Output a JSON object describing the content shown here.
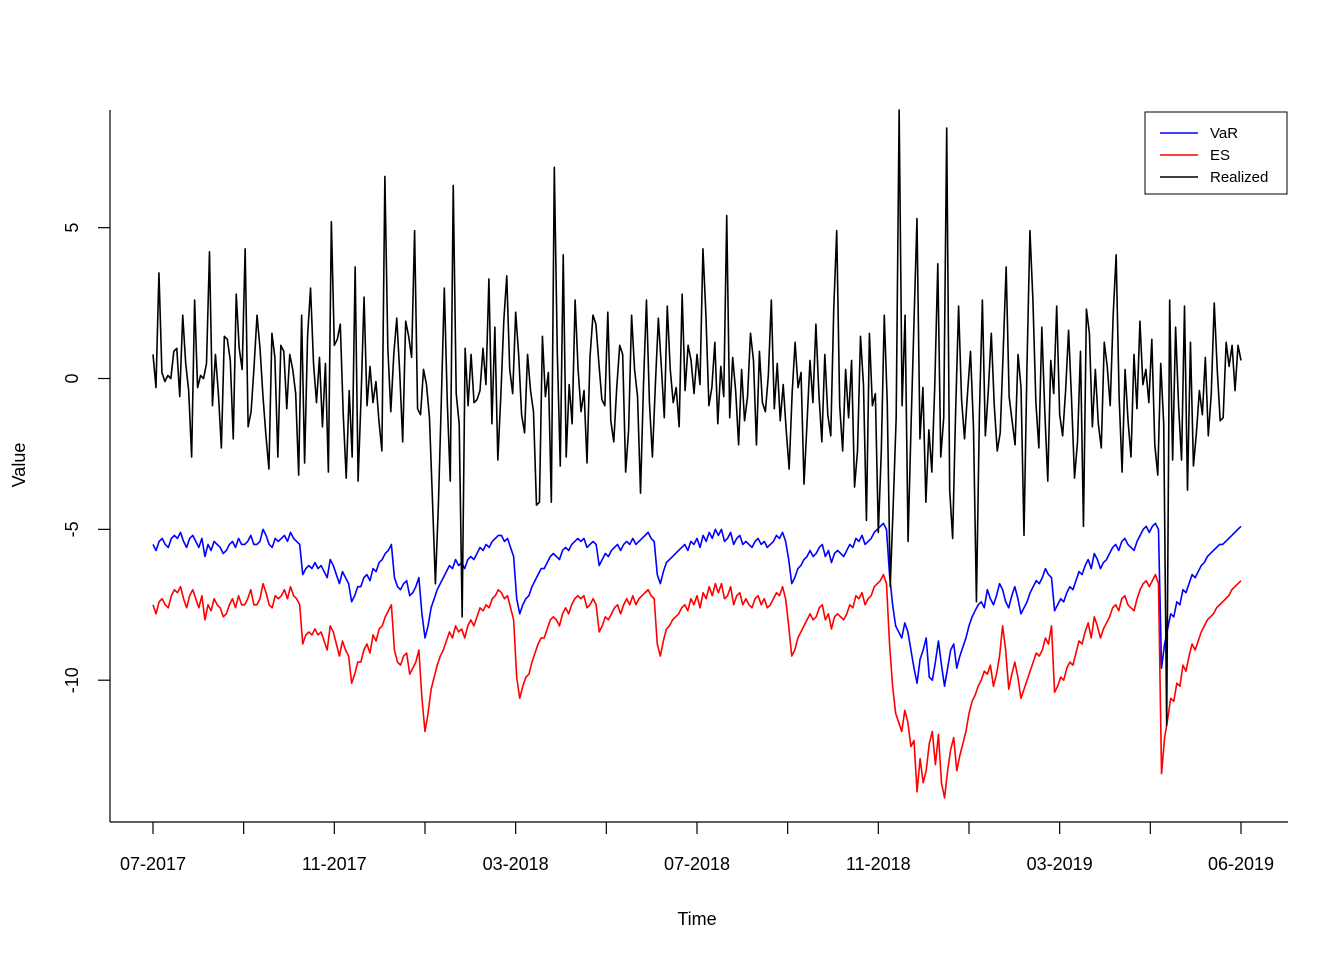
{
  "chart_data": {
    "type": "line",
    "xlabel": "Time",
    "ylabel": "Value",
    "x_ticks": [
      "07-2017",
      "",
      "11-2017",
      "",
      "03-2018",
      "",
      "07-2018",
      "",
      "11-2018",
      "",
      "03-2019",
      "",
      "06-2019"
    ],
    "y_ticks": [
      "-10",
      "-5",
      "0",
      "5"
    ],
    "y_tick_values": [
      -10,
      -5,
      0,
      5
    ],
    "ylim": [
      -14.7,
      8.9
    ],
    "legend_position": "top-right",
    "series": [
      {
        "name": "VaR",
        "color": "#0000ff",
        "values": [
          -5.5,
          -5.7,
          -5.4,
          -5.3,
          -5.5,
          -5.6,
          -5.3,
          -5.2,
          -5.3,
          -5.1,
          -5.4,
          -5.6,
          -5.3,
          -5.2,
          -5.4,
          -5.6,
          -5.3,
          -5.9,
          -5.5,
          -5.7,
          -5.4,
          -5.5,
          -5.6,
          -5.8,
          -5.7,
          -5.5,
          -5.4,
          -5.6,
          -5.3,
          -5.5,
          -5.5,
          -5.4,
          -5.2,
          -5.5,
          -5.5,
          -5.4,
          -5.0,
          -5.2,
          -5.5,
          -5.6,
          -5.3,
          -5.4,
          -5.3,
          -5.2,
          -5.4,
          -5.1,
          -5.3,
          -5.4,
          -5.5,
          -6.5,
          -6.3,
          -6.2,
          -6.3,
          -6.1,
          -6.3,
          -6.2,
          -6.4,
          -6.6,
          -6.0,
          -6.2,
          -6.5,
          -6.8,
          -6.4,
          -6.6,
          -6.8,
          -7.4,
          -7.2,
          -6.9,
          -6.9,
          -6.6,
          -6.5,
          -6.7,
          -6.3,
          -6.4,
          -6.1,
          -6.0,
          -5.8,
          -5.7,
          -5.5,
          -6.6,
          -6.9,
          -7.0,
          -6.8,
          -6.7,
          -7.2,
          -7.1,
          -6.9,
          -6.6,
          -7.8,
          -8.6,
          -8.2,
          -7.6,
          -7.3,
          -7.0,
          -6.8,
          -6.6,
          -6.4,
          -6.2,
          -6.3,
          -6.0,
          -6.2,
          -6.1,
          -6.3,
          -6.0,
          -5.9,
          -6.0,
          -5.8,
          -5.6,
          -5.7,
          -5.5,
          -5.6,
          -5.4,
          -5.3,
          -5.2,
          -5.2,
          -5.4,
          -5.3,
          -5.6,
          -5.9,
          -7.3,
          -7.8,
          -7.5,
          -7.3,
          -7.2,
          -6.9,
          -6.7,
          -6.5,
          -6.3,
          -6.3,
          -6.1,
          -5.9,
          -5.8,
          -5.9,
          -6.0,
          -5.7,
          -5.6,
          -5.7,
          -5.5,
          -5.4,
          -5.3,
          -5.4,
          -5.3,
          -5.6,
          -5.5,
          -5.4,
          -5.5,
          -6.2,
          -6.0,
          -5.8,
          -5.9,
          -5.7,
          -5.6,
          -5.5,
          -5.7,
          -5.5,
          -5.4,
          -5.5,
          -5.3,
          -5.5,
          -5.4,
          -5.3,
          -5.2,
          -5.1,
          -5.3,
          -5.4,
          -6.5,
          -6.8,
          -6.4,
          -6.1,
          -6.0,
          -5.9,
          -5.8,
          -5.7,
          -5.6,
          -5.5,
          -5.7,
          -5.4,
          -5.5,
          -5.3,
          -5.6,
          -5.2,
          -5.4,
          -5.1,
          -5.3,
          -5.0,
          -5.2,
          -5.0,
          -5.4,
          -5.3,
          -5.1,
          -5.5,
          -5.3,
          -5.2,
          -5.5,
          -5.4,
          -5.5,
          -5.6,
          -5.4,
          -5.3,
          -5.5,
          -5.4,
          -5.6,
          -5.5,
          -5.4,
          -5.2,
          -5.3,
          -5.1,
          -5.4,
          -6.0,
          -6.8,
          -6.6,
          -6.3,
          -6.2,
          -6.0,
          -5.9,
          -5.7,
          -5.9,
          -5.8,
          -5.6,
          -5.5,
          -5.9,
          -5.7,
          -6.1,
          -5.8,
          -5.7,
          -5.8,
          -5.9,
          -5.7,
          -5.5,
          -5.6,
          -5.3,
          -5.4,
          -5.2,
          -5.5,
          -5.4,
          -5.3,
          -5.1,
          -5.0,
          -4.9,
          -4.8,
          -5.0,
          -6.5,
          -7.5,
          -8.2,
          -8.4,
          -8.6,
          -8.1,
          -8.4,
          -9.0,
          -9.6,
          -10.1,
          -9.3,
          -9.0,
          -8.6,
          -9.9,
          -10.0,
          -9.4,
          -8.7,
          -9.5,
          -10.2,
          -9.6,
          -9.0,
          -8.8,
          -9.6,
          -9.2,
          -8.9,
          -8.6,
          -8.2,
          -7.9,
          -7.7,
          -7.5,
          -7.4,
          -7.6,
          -7.0,
          -7.3,
          -7.5,
          -7.2,
          -6.8,
          -7.0,
          -7.4,
          -7.6,
          -7.2,
          -6.9,
          -7.3,
          -7.8,
          -7.6,
          -7.4,
          -7.1,
          -6.9,
          -6.7,
          -6.8,
          -6.6,
          -6.3,
          -6.5,
          -6.6,
          -7.7,
          -7.5,
          -7.3,
          -7.4,
          -7.1,
          -6.9,
          -7.0,
          -6.7,
          -6.4,
          -6.5,
          -6.2,
          -6.0,
          -6.3,
          -5.8,
          -6.0,
          -6.3,
          -6.1,
          -6.0,
          -5.8,
          -5.6,
          -5.5,
          -5.7,
          -5.4,
          -5.3,
          -5.5,
          -5.6,
          -5.7,
          -5.4,
          -5.2,
          -5.0,
          -4.9,
          -5.1,
          -4.9,
          -4.8,
          -5.0,
          -9.6,
          -8.8,
          -8.3,
          -7.8,
          -7.9,
          -7.4,
          -7.5,
          -7.0,
          -7.1,
          -6.8,
          -6.5,
          -6.6,
          -6.4,
          -6.2,
          -6.1,
          -5.9,
          -5.8,
          -5.7,
          -5.6,
          -5.5,
          -5.5,
          -5.4,
          -5.3,
          -5.2,
          -5.1,
          -5.0,
          -4.9
        ]
      },
      {
        "name": "ES",
        "color": "#ff0000",
        "values": [
          -7.5,
          -7.8,
          -7.4,
          -7.3,
          -7.5,
          -7.6,
          -7.2,
          -7.0,
          -7.1,
          -6.9,
          -7.3,
          -7.6,
          -7.2,
          -7.0,
          -7.3,
          -7.6,
          -7.2,
          -8.0,
          -7.5,
          -7.7,
          -7.3,
          -7.5,
          -7.6,
          -7.9,
          -7.8,
          -7.5,
          -7.3,
          -7.6,
          -7.2,
          -7.5,
          -7.5,
          -7.3,
          -7.0,
          -7.5,
          -7.5,
          -7.3,
          -6.8,
          -7.1,
          -7.5,
          -7.6,
          -7.2,
          -7.3,
          -7.2,
          -7.0,
          -7.3,
          -6.9,
          -7.2,
          -7.3,
          -7.5,
          -8.8,
          -8.5,
          -8.4,
          -8.5,
          -8.3,
          -8.5,
          -8.4,
          -8.7,
          -9.0,
          -8.2,
          -8.4,
          -8.8,
          -9.2,
          -8.7,
          -9.0,
          -9.2,
          -10.1,
          -9.8,
          -9.4,
          -9.4,
          -9.0,
          -8.8,
          -9.1,
          -8.5,
          -8.7,
          -8.3,
          -8.2,
          -7.9,
          -7.7,
          -7.5,
          -9.0,
          -9.4,
          -9.5,
          -9.2,
          -9.1,
          -9.8,
          -9.6,
          -9.4,
          -9.0,
          -10.6,
          -11.7,
          -11.1,
          -10.3,
          -9.9,
          -9.5,
          -9.2,
          -9.0,
          -8.7,
          -8.4,
          -8.6,
          -8.2,
          -8.4,
          -8.3,
          -8.6,
          -8.2,
          -8.0,
          -8.2,
          -7.9,
          -7.6,
          -7.7,
          -7.5,
          -7.6,
          -7.3,
          -7.2,
          -7.0,
          -7.1,
          -7.3,
          -7.2,
          -7.6,
          -8.0,
          -9.9,
          -10.6,
          -10.2,
          -9.9,
          -9.8,
          -9.4,
          -9.1,
          -8.8,
          -8.6,
          -8.6,
          -8.3,
          -8.0,
          -7.9,
          -8.0,
          -8.2,
          -7.8,
          -7.6,
          -7.8,
          -7.5,
          -7.3,
          -7.2,
          -7.3,
          -7.2,
          -7.6,
          -7.5,
          -7.3,
          -7.5,
          -8.4,
          -8.2,
          -7.9,
          -8.0,
          -7.8,
          -7.6,
          -7.5,
          -7.8,
          -7.5,
          -7.3,
          -7.5,
          -7.2,
          -7.5,
          -7.3,
          -7.2,
          -7.1,
          -7.0,
          -7.2,
          -7.3,
          -8.8,
          -9.2,
          -8.7,
          -8.3,
          -8.2,
          -8.0,
          -7.9,
          -7.8,
          -7.6,
          -7.5,
          -7.7,
          -7.3,
          -7.5,
          -7.2,
          -7.6,
          -7.1,
          -7.3,
          -6.9,
          -7.2,
          -6.8,
          -7.1,
          -6.8,
          -7.3,
          -7.2,
          -6.9,
          -7.5,
          -7.2,
          -7.1,
          -7.5,
          -7.3,
          -7.5,
          -7.6,
          -7.3,
          -7.2,
          -7.5,
          -7.3,
          -7.6,
          -7.5,
          -7.3,
          -7.1,
          -7.2,
          -6.9,
          -7.3,
          -8.2,
          -9.2,
          -9.0,
          -8.6,
          -8.4,
          -8.2,
          -8.0,
          -7.8,
          -8.0,
          -7.9,
          -7.6,
          -7.5,
          -8.0,
          -7.8,
          -8.3,
          -7.9,
          -7.8,
          -7.9,
          -8.0,
          -7.8,
          -7.5,
          -7.6,
          -7.2,
          -7.3,
          -7.1,
          -7.5,
          -7.3,
          -7.2,
          -6.9,
          -6.8,
          -6.7,
          -6.5,
          -6.8,
          -8.8,
          -10.2,
          -11.1,
          -11.4,
          -11.7,
          -11.0,
          -11.4,
          -12.2,
          -12.0,
          -13.7,
          -12.6,
          -13.4,
          -13.0,
          -12.1,
          -11.7,
          -12.8,
          -11.8,
          -13.4,
          -13.9,
          -13.0,
          -12.3,
          -11.9,
          -13.0,
          -12.5,
          -12.1,
          -11.7,
          -11.1,
          -10.7,
          -10.5,
          -10.2,
          -10.0,
          -9.7,
          -9.8,
          -9.5,
          -10.2,
          -9.8,
          -9.2,
          -8.2,
          -9.0,
          -10.3,
          -9.8,
          -9.4,
          -9.9,
          -10.6,
          -10.3,
          -10.0,
          -9.7,
          -9.4,
          -9.1,
          -9.2,
          -9.0,
          -8.6,
          -8.8,
          -8.2,
          -10.4,
          -10.2,
          -9.9,
          -10.0,
          -9.6,
          -9.4,
          -9.5,
          -9.1,
          -8.7,
          -8.8,
          -8.4,
          -8.1,
          -8.6,
          -7.9,
          -8.2,
          -8.6,
          -8.3,
          -8.1,
          -7.9,
          -7.6,
          -7.5,
          -7.7,
          -7.3,
          -7.2,
          -7.5,
          -7.6,
          -7.7,
          -7.3,
          -7.0,
          -6.8,
          -6.7,
          -6.9,
          -6.7,
          -6.5,
          -6.8,
          -13.1,
          -11.9,
          -11.3,
          -10.6,
          -10.7,
          -10.1,
          -10.2,
          -9.5,
          -9.7,
          -9.2,
          -8.8,
          -9.0,
          -8.7,
          -8.4,
          -8.2,
          -8.0,
          -7.9,
          -7.8,
          -7.6,
          -7.5,
          -7.4,
          -7.3,
          -7.2,
          -7.0,
          -6.9,
          -6.8,
          -6.7
        ]
      },
      {
        "name": "Realized",
        "color": "#000000",
        "values": [
          0.8,
          -0.3,
          3.5,
          0.2,
          -0.1,
          0.1,
          0.0,
          0.9,
          1.0,
          -0.6,
          2.1,
          0.5,
          -0.4,
          -2.6,
          2.6,
          -0.3,
          0.1,
          0.0,
          0.5,
          4.2,
          -0.9,
          0.8,
          -0.5,
          -2.3,
          1.4,
          1.3,
          0.6,
          -2.0,
          2.8,
          1.0,
          0.3,
          4.3,
          -1.6,
          -1.1,
          0.4,
          2.1,
          1.0,
          -0.6,
          -1.9,
          -3.0,
          1.5,
          0.7,
          -2.6,
          1.1,
          0.9,
          -1.0,
          0.8,
          0.3,
          -0.5,
          -3.2,
          2.1,
          -2.8,
          1.4,
          3.0,
          0.5,
          -0.8,
          0.7,
          -1.6,
          0.5,
          -3.1,
          5.2,
          1.1,
          1.3,
          1.8,
          -1.2,
          -3.3,
          -0.4,
          -2.6,
          3.7,
          -3.4,
          -0.6,
          2.7,
          -0.9,
          0.4,
          -0.8,
          -0.1,
          -1.4,
          -2.4,
          6.7,
          1.0,
          -1.1,
          0.8,
          2.0,
          0.2,
          -2.1,
          1.9,
          1.4,
          0.7,
          4.9,
          -1.0,
          -1.2,
          0.3,
          -0.2,
          -1.3,
          -4.0,
          -6.8,
          -4.2,
          -0.7,
          3.0,
          -0.8,
          -3.4,
          6.4,
          -0.5,
          -1.5,
          -7.9,
          1.0,
          -0.9,
          0.8,
          -0.8,
          -0.7,
          -0.4,
          1.0,
          -0.2,
          3.3,
          -1.5,
          1.7,
          -2.7,
          -0.6,
          1.9,
          3.4,
          0.3,
          -0.5,
          2.2,
          0.8,
          -1.2,
          -1.8,
          0.8,
          -0.4,
          -1.1,
          -4.2,
          -4.1,
          1.4,
          -0.6,
          0.2,
          -4.1,
          7.0,
          0.9,
          -2.9,
          4.1,
          -2.6,
          -0.2,
          -1.5,
          2.6,
          0.3,
          -1.1,
          -0.4,
          -2.8,
          0.7,
          2.1,
          1.8,
          0.5,
          -0.7,
          -0.9,
          2.2,
          -1.4,
          -2.1,
          -0.3,
          1.1,
          0.8,
          -3.1,
          -1.7,
          2.1,
          0.3,
          -0.6,
          -3.8,
          -0.2,
          2.6,
          -0.8,
          -2.6,
          -0.2,
          2.0,
          0.4,
          -1.3,
          2.4,
          0.3,
          -0.8,
          -0.3,
          -1.6,
          2.8,
          -0.4,
          1.1,
          0.6,
          -0.5,
          0.8,
          -0.2,
          4.3,
          2.1,
          -0.9,
          -0.3,
          1.2,
          -1.5,
          0.4,
          -0.6,
          5.4,
          -1.3,
          0.7,
          -0.4,
          -2.2,
          0.3,
          -1.4,
          -0.6,
          1.5,
          0.6,
          -2.2,
          0.9,
          -0.8,
          -1.1,
          0.1,
          2.6,
          -1.0,
          0.5,
          -1.4,
          -0.2,
          -1.7,
          -3.0,
          -0.5,
          1.2,
          -0.3,
          0.2,
          -3.5,
          -1.5,
          0.6,
          -0.8,
          1.8,
          -0.5,
          -2.1,
          0.8,
          -1.2,
          -1.9,
          2.3,
          4.9,
          -0.9,
          -2.4,
          0.3,
          -1.3,
          0.6,
          -3.6,
          -2.4,
          1.4,
          -0.2,
          -4.7,
          1.5,
          -0.9,
          -0.5,
          -5.1,
          -2.4,
          2.1,
          -0.8,
          -6.9,
          -4.2,
          -1.3,
          8.9,
          -0.9,
          2.1,
          -5.4,
          -1.6,
          1.9,
          5.3,
          -2.0,
          -0.3,
          -4.1,
          -1.7,
          -3.1,
          -0.2,
          3.8,
          -2.6,
          -1.3,
          8.3,
          -3.7,
          -5.3,
          -1.1,
          2.4,
          -0.7,
          -2.0,
          -0.5,
          0.9,
          -1.6,
          -7.4,
          -1.2,
          2.6,
          -1.9,
          -0.4,
          1.5,
          -0.9,
          -2.4,
          -1.8,
          0.9,
          3.7,
          -0.6,
          -1.4,
          -2.2,
          0.8,
          -0.3,
          -5.2,
          0.4,
          4.9,
          2.6,
          -0.8,
          -2.3,
          1.7,
          -1.1,
          -3.4,
          0.6,
          -0.5,
          2.4,
          -1.2,
          -1.9,
          -0.4,
          1.6,
          -0.7,
          -3.3,
          -2.1,
          0.9,
          -4.9,
          2.3,
          1.5,
          -1.6,
          0.3,
          -1.5,
          -2.3,
          1.2,
          0.4,
          -0.9,
          2.1,
          4.1,
          -0.6,
          -3.1,
          0.3,
          -1.4,
          -2.6,
          0.8,
          -1.0,
          1.9,
          -0.2,
          0.3,
          -0.8,
          1.3,
          -2.2,
          -3.2,
          0.5,
          -1.5,
          -11.5,
          2.6,
          -2.7,
          1.7,
          -0.9,
          -2.7,
          2.4,
          -3.7,
          1.2,
          -2.9,
          -1.8,
          -0.4,
          -1.2,
          0.7,
          -1.9,
          -0.5,
          2.5,
          0.3,
          -1.4,
          -1.3,
          1.2,
          0.4,
          1.1,
          -0.4,
          1.1,
          0.6
        ]
      }
    ]
  }
}
